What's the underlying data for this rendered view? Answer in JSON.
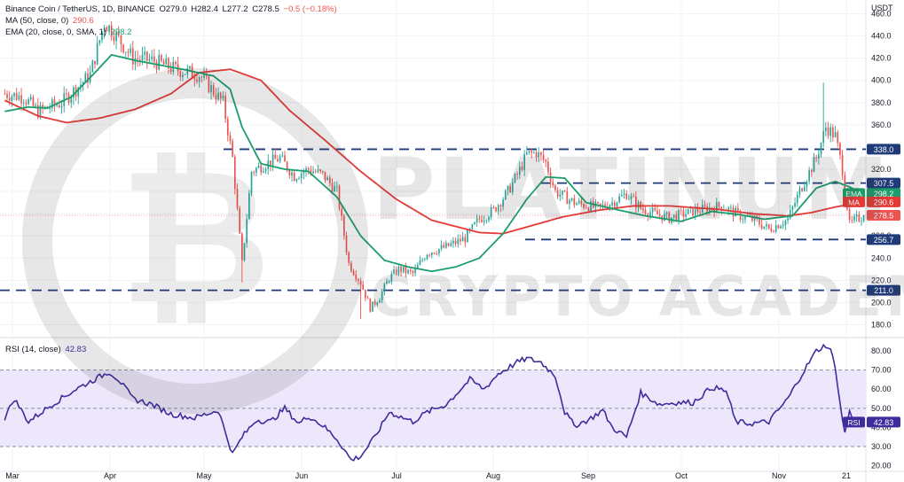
{
  "header": {
    "symbol_line": "Binance Coin / TetherUS, 1D, BINANCE",
    "ohlc": {
      "o": "O279.0",
      "h": "H282.4",
      "l": "L277.2",
      "c": "C278.5",
      "chg": "−0.5 (−0.18%)"
    },
    "ma_label": "MA (50, close, 0)",
    "ma_value": "290.6",
    "ema_label": "EMA (20, close, 0, SMA, 1)",
    "ema_value": "298.2",
    "rsi_label": "RSI (14, close)",
    "rsi_value": "42.83",
    "currency": "USDT"
  },
  "watermark": {
    "line1": "PLATINUM",
    "line2": "CRYPTO ACADEMY"
  },
  "colors": {
    "up": "#26a69a",
    "down": "#ef5350",
    "ma": "#e53935",
    "ema": "#1b9e6a",
    "rsi": "#3f2b9c",
    "level": "#1e3a78",
    "rsi_band": "#ede7fb",
    "price_line": "#f4a5a5",
    "badge_last": "#ef5350"
  },
  "chart_data": [
    {
      "type": "candlestick",
      "title": "Binance Coin / TetherUS, 1D, BINANCE",
      "ylabel": "USDT",
      "ylim": [
        170,
        466
      ],
      "y_ticks": [
        180,
        200,
        220,
        240,
        260,
        280,
        300,
        320,
        340,
        360,
        380,
        400,
        420,
        440,
        460
      ],
      "x_ticks": [
        "Mar",
        "Apr",
        "May",
        "Jun",
        "Jul",
        "Aug",
        "Sep",
        "Oct",
        "Nov",
        "21"
      ],
      "horizontal_levels": [
        338.0,
        307.5,
        256.7,
        211.0
      ],
      "last_price": 278.5,
      "series": [
        {
          "name": "MA",
          "value": 290.6,
          "anchors": [
            [
              0,
              382
            ],
            [
              14,
              368
            ],
            [
              26,
              362
            ],
            [
              40,
              366
            ],
            [
              55,
              374
            ],
            [
              70,
              388
            ],
            [
              82,
              407
            ],
            [
              95,
              410
            ],
            [
              108,
              400
            ],
            [
              120,
              373
            ],
            [
              135,
              346
            ],
            [
              150,
              318
            ],
            [
              165,
              293
            ],
            [
              180,
              274
            ],
            [
              200,
              263
            ],
            [
              210,
              262
            ],
            [
              220,
              268
            ],
            [
              235,
              277
            ],
            [
              250,
              283
            ],
            [
              265,
              287
            ],
            [
              280,
              287
            ],
            [
              300,
              284
            ],
            [
              315,
              280
            ],
            [
              330,
              278
            ],
            [
              340,
              281
            ],
            [
              350,
              286
            ],
            [
              358,
              289
            ],
            [
              362,
              290.6
            ]
          ]
        },
        {
          "name": "EMA",
          "value": 298.2,
          "anchors": [
            [
              0,
              372
            ],
            [
              10,
              376
            ],
            [
              18,
              375
            ],
            [
              28,
              385
            ],
            [
              38,
              407
            ],
            [
              45,
              423
            ],
            [
              55,
              418
            ],
            [
              65,
              414
            ],
            [
              75,
              410
            ],
            [
              88,
              404
            ],
            [
              95,
              392
            ],
            [
              100,
              358
            ],
            [
              108,
              325
            ],
            [
              118,
              320
            ],
            [
              128,
              318
            ],
            [
              140,
              295
            ],
            [
              150,
              260
            ],
            [
              160,
              238
            ],
            [
              170,
              232
            ],
            [
              180,
              228
            ],
            [
              190,
              232
            ],
            [
              200,
              240
            ],
            [
              210,
              262
            ],
            [
              220,
              293
            ],
            [
              228,
              313
            ],
            [
              236,
              312
            ],
            [
              245,
              290
            ],
            [
              255,
              285
            ],
            [
              270,
              278
            ],
            [
              285,
              273
            ],
            [
              298,
              282
            ],
            [
              310,
              279
            ],
            [
              320,
              275
            ],
            [
              332,
              278
            ],
            [
              342,
              303
            ],
            [
              350,
              309
            ],
            [
              356,
              304
            ],
            [
              362,
              298.2
            ]
          ]
        }
      ],
      "price_anchors": [
        [
          0,
          388
        ],
        [
          8,
          385
        ],
        [
          14,
          372
        ],
        [
          24,
          380
        ],
        [
          36,
          405
        ],
        [
          42,
          452
        ],
        [
          46,
          443
        ],
        [
          54,
          420
        ],
        [
          62,
          418
        ],
        [
          72,
          410
        ],
        [
          82,
          405
        ],
        [
          92,
          380
        ],
        [
          96,
          330
        ],
        [
          100,
          235
        ],
        [
          104,
          318
        ],
        [
          110,
          325
        ],
        [
          116,
          330
        ],
        [
          122,
          314
        ],
        [
          128,
          320
        ],
        [
          134,
          315
        ],
        [
          140,
          300
        ],
        [
          145,
          235
        ],
        [
          150,
          218
        ],
        [
          154,
          195
        ],
        [
          158,
          205
        ],
        [
          162,
          222
        ],
        [
          166,
          230
        ],
        [
          172,
          226
        ],
        [
          178,
          245
        ],
        [
          186,
          250
        ],
        [
          194,
          258
        ],
        [
          200,
          275
        ],
        [
          206,
          283
        ],
        [
          212,
          300
        ],
        [
          216,
          315
        ],
        [
          220,
          333
        ],
        [
          224,
          335
        ],
        [
          228,
          326
        ],
        [
          232,
          300
        ],
        [
          240,
          290
        ],
        [
          250,
          285
        ],
        [
          256,
          290
        ],
        [
          262,
          298
        ],
        [
          268,
          285
        ],
        [
          274,
          280
        ],
        [
          280,
          276
        ],
        [
          290,
          282
        ],
        [
          302,
          287
        ],
        [
          310,
          278
        ],
        [
          316,
          274
        ],
        [
          322,
          266
        ],
        [
          330,
          275
        ],
        [
          336,
          305
        ],
        [
          342,
          330
        ],
        [
          346,
          358
        ],
        [
          350,
          350
        ],
        [
          353,
          320
        ],
        [
          356,
          270
        ],
        [
          359,
          275
        ],
        [
          362,
          278.5
        ]
      ]
    },
    {
      "type": "line",
      "title": "RSI (14, close)",
      "ylim": [
        18,
        86
      ],
      "y_ticks": [
        20,
        30,
        40,
        50,
        60,
        70,
        80
      ],
      "band": [
        30,
        70
      ],
      "midline": 50,
      "last_value": 42.83,
      "anchors": [
        [
          0,
          45
        ],
        [
          4,
          55
        ],
        [
          10,
          43
        ],
        [
          20,
          52
        ],
        [
          30,
          60
        ],
        [
          44,
          69
        ],
        [
          48,
          65
        ],
        [
          54,
          55
        ],
        [
          62,
          52
        ],
        [
          70,
          47
        ],
        [
          80,
          45
        ],
        [
          90,
          49
        ],
        [
          96,
          26
        ],
        [
          100,
          35
        ],
        [
          106,
          44
        ],
        [
          112,
          43
        ],
        [
          118,
          50
        ],
        [
          124,
          42
        ],
        [
          128,
          46
        ],
        [
          134,
          41
        ],
        [
          140,
          34
        ],
        [
          146,
          23
        ],
        [
          150,
          25
        ],
        [
          156,
          35
        ],
        [
          162,
          48
        ],
        [
          166,
          46
        ],
        [
          172,
          43
        ],
        [
          178,
          48
        ],
        [
          186,
          52
        ],
        [
          196,
          65
        ],
        [
          202,
          60
        ],
        [
          208,
          68
        ],
        [
          216,
          74
        ],
        [
          220,
          76
        ],
        [
          226,
          74
        ],
        [
          232,
          67
        ],
        [
          236,
          48
        ],
        [
          240,
          41
        ],
        [
          246,
          44
        ],
        [
          252,
          49
        ],
        [
          256,
          40
        ],
        [
          262,
          35
        ],
        [
          268,
          58
        ],
        [
          276,
          52
        ],
        [
          282,
          53
        ],
        [
          290,
          53
        ],
        [
          298,
          61
        ],
        [
          304,
          59
        ],
        [
          308,
          43
        ],
        [
          314,
          42
        ],
        [
          322,
          43
        ],
        [
          330,
          55
        ],
        [
          336,
          68
        ],
        [
          342,
          80
        ],
        [
          346,
          83
        ],
        [
          348,
          80
        ],
        [
          350,
          72
        ],
        [
          352,
          52
        ],
        [
          354,
          37
        ],
        [
          356,
          48
        ],
        [
          358,
          44
        ],
        [
          362,
          42.83
        ]
      ]
    }
  ],
  "badges": [
    {
      "kind": "level",
      "text": "338.0",
      "value": 338.0
    },
    {
      "kind": "level",
      "text": "307.5",
      "value": 307.5
    },
    {
      "kind": "ema",
      "label": "EMA",
      "text": "298.2",
      "value": 298.2
    },
    {
      "kind": "ma",
      "label": "MA",
      "text": "290.6",
      "value": 290.6
    },
    {
      "kind": "last",
      "text": "278.5",
      "value": 278.5
    },
    {
      "kind": "level",
      "text": "256.7",
      "value": 256.7
    },
    {
      "kind": "level",
      "text": "211.0",
      "value": 211.0
    },
    {
      "kind": "rsi",
      "label": "RSI",
      "text": "42.83",
      "value": 42.83
    }
  ]
}
